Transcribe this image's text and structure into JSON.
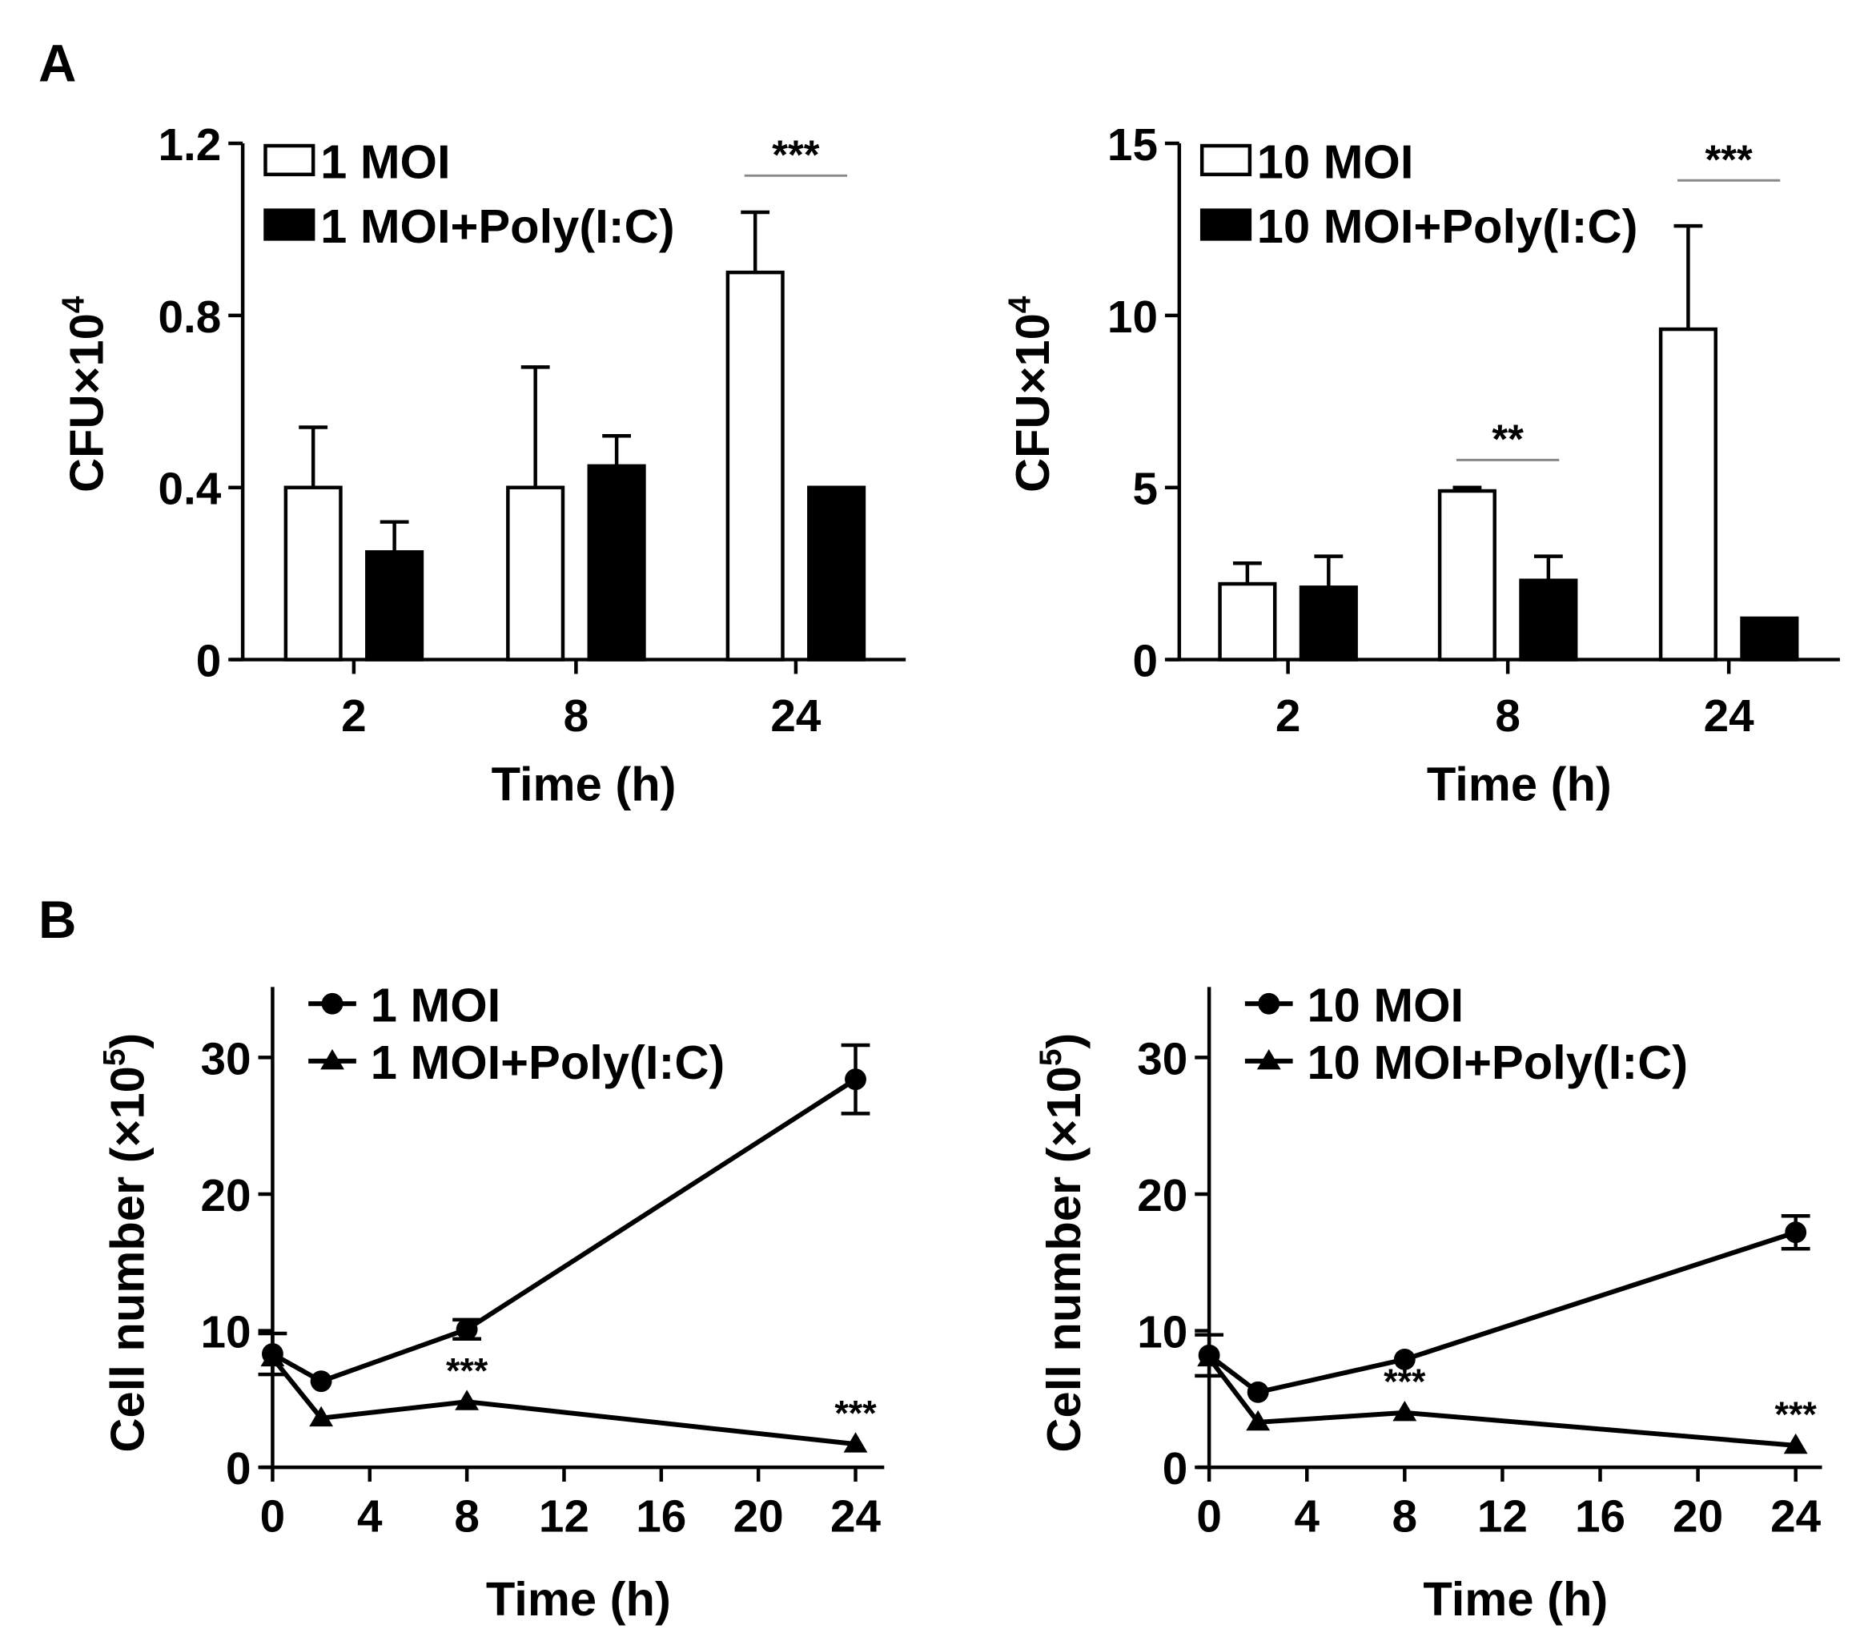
{
  "panel_labels": [
    "A",
    "B"
  ],
  "chart_data": [
    {
      "type": "bar",
      "panel": "A",
      "categories": [
        "2",
        "8",
        "24"
      ],
      "xlabel": "Time  (h)",
      "ylabel": "CFU×10",
      "ylabel_sup": "4",
      "ylim": [
        0,
        1.2
      ],
      "yticks": [
        "0",
        "0.4",
        "0.8",
        "1.2"
      ],
      "ytick_values": [
        0,
        0.4,
        0.8,
        1.2
      ],
      "series": [
        {
          "name": "1 MOI",
          "fill": "#ffffff",
          "values": [
            0.4,
            0.4,
            0.9
          ],
          "errors": [
            0.14,
            0.28,
            0.14
          ]
        },
        {
          "name": "1 MOI+Poly(I:C)",
          "fill": "#000000",
          "values": [
            0.25,
            0.45,
            0.4
          ],
          "errors": [
            0.07,
            0.07,
            0
          ]
        }
      ],
      "significance": [
        {
          "category": "24",
          "label": "***"
        }
      ]
    },
    {
      "type": "bar",
      "panel": "A",
      "categories": [
        "2",
        "8",
        "24"
      ],
      "xlabel": "Time  (h)",
      "ylabel": "CFU×10",
      "ylabel_sup": "4",
      "ylim": [
        0,
        15
      ],
      "yticks": [
        "0",
        "5",
        "10",
        "15"
      ],
      "ytick_values": [
        0,
        5,
        10,
        15
      ],
      "series": [
        {
          "name": "10 MOI",
          "fill": "#ffffff",
          "values": [
            2.2,
            4.9,
            9.6
          ],
          "errors": [
            0.6,
            0.1,
            3.0
          ]
        },
        {
          "name": "10 MOI+Poly(I:C)",
          "fill": "#000000",
          "values": [
            2.1,
            2.3,
            1.2
          ],
          "errors": [
            0.9,
            0.7,
            0
          ]
        }
      ],
      "significance": [
        {
          "category": "8",
          "label": "**"
        },
        {
          "category": "24",
          "label": "***"
        }
      ]
    },
    {
      "type": "line",
      "panel": "B",
      "x": [
        0,
        2,
        8,
        24
      ],
      "xlabel": "Time  (h)",
      "ylabel": "Cell number  (×10",
      "ylabel_sup": "5",
      "ylabel_end": ")",
      "xlim": [
        0,
        24
      ],
      "xticks": [
        "0",
        "4",
        "8",
        "12",
        "16",
        "20",
        "24"
      ],
      "xtick_values": [
        0,
        4,
        8,
        12,
        16,
        20,
        24
      ],
      "ylim": [
        0,
        35
      ],
      "yticks": [
        "0",
        "10",
        "20",
        "30"
      ],
      "ytick_values": [
        0,
        10,
        20,
        30
      ],
      "series": [
        {
          "name": "1 MOI",
          "marker": "circle",
          "values": [
            8.3,
            6.3,
            10.1,
            28.4
          ],
          "errors": [
            1.5,
            0.3,
            0.7,
            2.5
          ]
        },
        {
          "name": "1 MOI+Poly(I:C)",
          "marker": "triangle",
          "values": [
            8.0,
            3.6,
            4.8,
            1.7
          ],
          "errors": [
            0.3,
            0.2,
            0.3,
            0.2
          ]
        }
      ],
      "significance": [
        {
          "x": 8,
          "label": "***"
        },
        {
          "x": 24,
          "label": "***"
        }
      ]
    },
    {
      "type": "line",
      "panel": "B",
      "x": [
        0,
        2,
        8,
        24
      ],
      "xlabel": "Time  (h)",
      "ylabel": "Cell number  (×10",
      "ylabel_sup": "5",
      "ylabel_end": ")",
      "xlim": [
        0,
        24
      ],
      "xticks": [
        "0",
        "4",
        "8",
        "12",
        "16",
        "20",
        "24"
      ],
      "xtick_values": [
        0,
        4,
        8,
        12,
        16,
        20,
        24
      ],
      "ylim": [
        0,
        35
      ],
      "yticks": [
        "0",
        "10",
        "20",
        "30"
      ],
      "ytick_values": [
        0,
        10,
        20,
        30
      ],
      "series": [
        {
          "name": "10 MOI",
          "marker": "circle",
          "values": [
            8.2,
            5.5,
            7.9,
            17.2
          ],
          "errors": [
            1.5,
            0.3,
            0.3,
            1.2
          ]
        },
        {
          "name": "10 MOI+Poly(I:C)",
          "marker": "triangle",
          "values": [
            8.0,
            3.3,
            4.0,
            1.6
          ],
          "errors": [
            0.3,
            0.2,
            0.2,
            0.2
          ]
        }
      ],
      "significance": [
        {
          "x": 8,
          "label": "***"
        },
        {
          "x": 24,
          "label": "***"
        }
      ]
    }
  ]
}
